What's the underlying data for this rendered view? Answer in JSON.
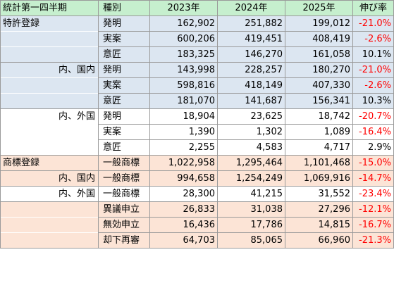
{
  "header": {
    "category": "統計第一四半期",
    "kind": "種別",
    "y2023": "2023年",
    "y2024": "2024年",
    "y2025": "2025年",
    "growth": "伸び率"
  },
  "rows": [
    {
      "category": "特許登録",
      "kind": "発明",
      "v2023": "162,902",
      "v2024": "251,882",
      "v2025": "199,012",
      "growth": "-21.0%"
    },
    {
      "category": "",
      "kind": "実案",
      "v2023": "600,206",
      "v2024": "419,451",
      "v2025": "408,419",
      "growth": "-2.6%"
    },
    {
      "category": "",
      "kind": "意匠",
      "v2023": "183,325",
      "v2024": "146,270",
      "v2025": "161,058",
      "growth": "10.1%"
    },
    {
      "category": "内、国内",
      "kind": "発明",
      "v2023": "143,998",
      "v2024": "228,257",
      "v2025": "180,270",
      "growth": "-21.0%"
    },
    {
      "category": "",
      "kind": "実案",
      "v2023": "598,816",
      "v2024": "418,149",
      "v2025": "407,330",
      "growth": "-2.6%"
    },
    {
      "category": "",
      "kind": "意匠",
      "v2023": "181,070",
      "v2024": "141,687",
      "v2025": "156,341",
      "growth": "10.3%"
    },
    {
      "category": "内、外国",
      "kind": "発明",
      "v2023": "18,904",
      "v2024": "23,625",
      "v2025": "18,742",
      "growth": "-20.7%"
    },
    {
      "category": "",
      "kind": "実案",
      "v2023": "1,390",
      "v2024": "1,302",
      "v2025": "1,089",
      "growth": "-16.4%"
    },
    {
      "category": "",
      "kind": "意匠",
      "v2023": "2,255",
      "v2024": "4,583",
      "v2025": "4,717",
      "growth": "2.9%"
    },
    {
      "category": "商標登録",
      "kind": "一般商標",
      "v2023": "1,022,958",
      "v2024": "1,295,464",
      "v2025": "1,101,468",
      "growth": "-15.0%"
    },
    {
      "category": "内、国内",
      "kind": "一般商標",
      "v2023": "994,658",
      "v2024": "1,254,249",
      "v2025": "1,069,916",
      "growth": "-14.7%"
    },
    {
      "category": "内、外国",
      "kind": "一般商標",
      "v2023": "28,300",
      "v2024": "41,215",
      "v2025": "31,552",
      "growth": "-23.4%"
    },
    {
      "category": "",
      "kind": "異議申立",
      "v2023": "26,833",
      "v2024": "31,038",
      "v2025": "27,296",
      "growth": "-12.1%"
    },
    {
      "category": "",
      "kind": "無効申立",
      "v2023": "16,436",
      "v2024": "17,786",
      "v2025": "14,815",
      "growth": "-16.7%"
    },
    {
      "category": "",
      "kind": "却下再審",
      "v2023": "64,703",
      "v2024": "85,065",
      "v2025": "66,960",
      "growth": "-21.3%"
    }
  ],
  "colors": {
    "header": "#c6efce",
    "patent_blue": "#dce6f1",
    "trademark_peach": "#fce4d6",
    "negative_text": "#ff0000"
  }
}
